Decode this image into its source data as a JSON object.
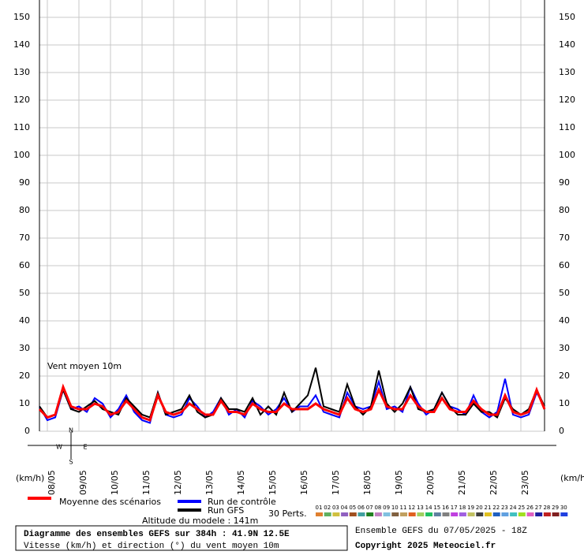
{
  "chart_data": {
    "type": "line",
    "annotation": "Vent moyen 10m",
    "y_unit_label": "(km/h)",
    "categories": [
      null,
      "08/05",
      null,
      null,
      null,
      "09/05",
      null,
      null,
      null,
      "10/05",
      null,
      null,
      null,
      "11/05",
      null,
      null,
      null,
      "12/05",
      null,
      null,
      null,
      "13/05",
      null,
      null,
      null,
      "14/05",
      null,
      null,
      null,
      "15/05",
      null,
      null,
      null,
      "16/05",
      null,
      null,
      null,
      "17/05",
      null,
      null,
      null,
      "18/05",
      null,
      null,
      null,
      "19/05",
      null,
      null,
      null,
      "20/05",
      null,
      null,
      null,
      "21/05",
      null,
      null,
      null,
      "22/05",
      null,
      null,
      null,
      "23/05",
      null,
      null,
      null
    ],
    "ylim": [
      0,
      150
    ],
    "yticks": [
      0,
      10,
      20,
      30,
      40,
      50,
      60,
      70,
      80,
      90,
      100,
      110,
      120,
      130,
      140,
      150
    ],
    "grid": true,
    "series": [
      {
        "name": "Run de contrôle",
        "color": "#0000ff",
        "values": [
          9,
          4,
          5,
          15,
          8,
          9,
          7,
          12,
          10,
          5,
          8,
          13,
          7,
          4,
          3,
          14,
          6,
          5,
          6,
          12,
          9,
          5,
          7,
          12,
          6,
          8,
          5,
          11,
          9,
          6,
          8,
          12,
          7,
          9,
          9,
          13,
          7,
          6,
          5,
          14,
          9,
          8,
          9,
          18,
          8,
          9,
          7,
          16,
          10,
          6,
          8,
          14,
          9,
          8,
          6,
          13,
          7,
          5,
          7,
          19,
          6,
          5,
          6,
          14,
          9
        ]
      },
      {
        "name": "Run GFS",
        "color": "#000000",
        "values": [
          9,
          5,
          6,
          15,
          8,
          7,
          9,
          11,
          8,
          7,
          6,
          12,
          9,
          6,
          5,
          14,
          6,
          7,
          8,
          13,
          7,
          5,
          6,
          12,
          8,
          8,
          7,
          12,
          6,
          9,
          6,
          14,
          7,
          10,
          13,
          23,
          9,
          8,
          7,
          17,
          9,
          6,
          9,
          22,
          10,
          7,
          10,
          16,
          8,
          7,
          8,
          14,
          9,
          6,
          6,
          10,
          7,
          7,
          5,
          12,
          8,
          6,
          8,
          15,
          9
        ]
      },
      {
        "name": "Moyenne des scénarios",
        "color": "#ff0000",
        "values": [
          8,
          5,
          6,
          16,
          9,
          8,
          8,
          10,
          9,
          6,
          7,
          11,
          8,
          5,
          4,
          13,
          7,
          6,
          7,
          10,
          8,
          6,
          6,
          11,
          7,
          7,
          6,
          10,
          8,
          7,
          7,
          10,
          8,
          8,
          8,
          10,
          8,
          7,
          6,
          12,
          8,
          7,
          8,
          15,
          9,
          8,
          8,
          13,
          9,
          7,
          7,
          12,
          8,
          7,
          7,
          11,
          8,
          6,
          6,
          13,
          7,
          6,
          7,
          15,
          8
        ]
      }
    ],
    "perturbations_label": "30 Perts.",
    "perturbations": [
      {
        "name": "01",
        "color": "#e08030"
      },
      {
        "name": "02",
        "color": "#60b060"
      },
      {
        "name": "03",
        "color": "#d0c040"
      },
      {
        "name": "04",
        "color": "#9060c0"
      },
      {
        "name": "05",
        "color": "#a05020"
      },
      {
        "name": "06",
        "color": "#40a0a0"
      },
      {
        "name": "07",
        "color": "#208020"
      },
      {
        "name": "08",
        "color": "#c080c0"
      },
      {
        "name": "09",
        "color": "#80c0e0"
      },
      {
        "name": "10",
        "color": "#806040"
      },
      {
        "name": "11",
        "color": "#c0a060"
      },
      {
        "name": "12",
        "color": "#e06020"
      },
      {
        "name": "13",
        "color": "#a0d060"
      },
      {
        "name": "14",
        "color": "#20c060"
      },
      {
        "name": "15",
        "color": "#6080a0"
      },
      {
        "name": "16",
        "color": "#808080"
      },
      {
        "name": "17",
        "color": "#c040e0"
      },
      {
        "name": "18",
        "color": "#a060e0"
      },
      {
        "name": "19",
        "color": "#c0c060"
      },
      {
        "name": "20",
        "color": "#404040"
      },
      {
        "name": "21",
        "color": "#e0c020"
      },
      {
        "name": "22",
        "color": "#2060c0"
      },
      {
        "name": "23",
        "color": "#60a0e0"
      },
      {
        "name": "24",
        "color": "#40c0c0"
      },
      {
        "name": "25",
        "color": "#a0e020"
      },
      {
        "name": "26",
        "color": "#e060c0"
      },
      {
        "name": "27",
        "color": "#2020a0"
      },
      {
        "name": "28",
        "color": "#c02020"
      },
      {
        "name": "29",
        "color": "#802020"
      },
      {
        "name": "30",
        "color": "#2040e0"
      }
    ],
    "altitude": "Altitude du modele : 141m",
    "compass": {
      "n": "N",
      "w": "W",
      "e": "E",
      "s": "S"
    },
    "footer": {
      "title": "Diagramme des ensembles GEFS sur 384h : 41.9N 12.5E",
      "subtitle": "Vitesse (km/h) et direction (°) du vent moyen 10m",
      "run": "Ensemble GEFS du 07/05/2025 - 18Z",
      "copyright": "Copyright 2025 Meteociel.fr"
    }
  }
}
